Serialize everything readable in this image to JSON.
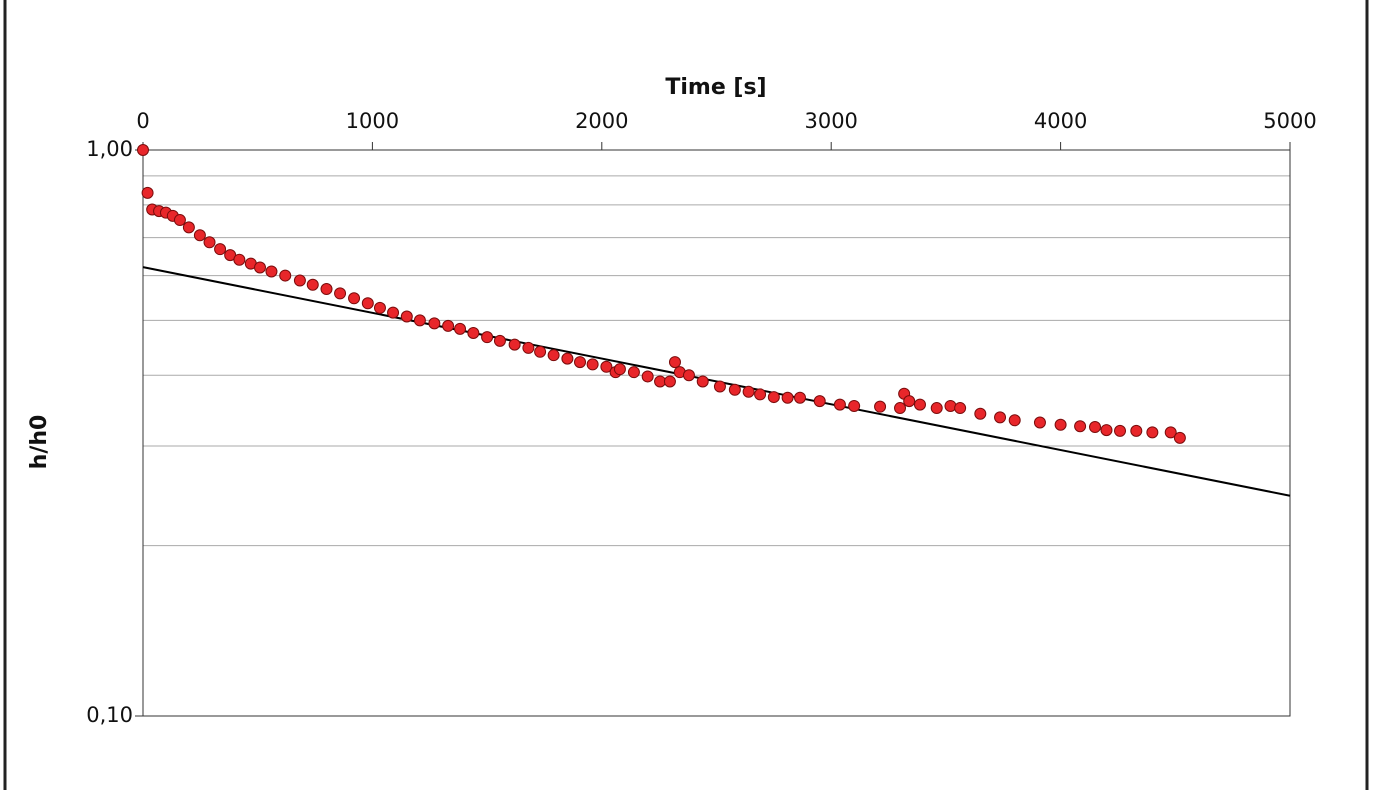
{
  "chart_data": {
    "type": "scatter",
    "xlabel": "Time [s]",
    "ylabel": "h/h0",
    "x_axis_position": "top",
    "xlim": [
      0,
      5000
    ],
    "xticks": [
      0,
      1000,
      2000,
      3000,
      4000,
      5000
    ],
    "ylim": [
      0.1,
      1.0
    ],
    "y_log_scale": true,
    "yticks": [
      {
        "value": 1.0,
        "label": "1,00"
      },
      {
        "value": 0.1,
        "label": "0,10"
      }
    ],
    "y_minor_grid": [
      0.2,
      0.3,
      0.4,
      0.5,
      0.6,
      0.7,
      0.8,
      0.9
    ],
    "points": {
      "color": "#e8262a",
      "x": [
        0,
        20,
        40,
        70,
        100,
        130,
        161,
        200,
        248,
        290,
        336,
        380,
        420,
        470,
        510,
        560,
        620,
        684,
        740,
        800,
        859,
        920,
        980,
        1033,
        1090,
        1150,
        1207,
        1270,
        1330,
        1382,
        1440,
        1500,
        1556,
        1620,
        1680,
        1731,
        1790,
        1850,
        1905,
        1960,
        2020,
        2060,
        2079,
        2140,
        2200,
        2254,
        2297,
        2319,
        2340,
        2380,
        2440,
        2515,
        2580,
        2640,
        2690,
        2750,
        2810,
        2864,
        2950,
        3038,
        3100,
        3213,
        3300,
        3318,
        3340,
        3387,
        3460,
        3520,
        3562,
        3650,
        3736,
        3800,
        3910,
        4000,
        4085,
        4150,
        4200,
        4259,
        4330,
        4400,
        4480,
        4520
      ],
      "values": [
        1.0,
        0.84,
        0.785,
        0.78,
        0.775,
        0.765,
        0.752,
        0.73,
        0.707,
        0.687,
        0.668,
        0.652,
        0.64,
        0.63,
        0.62,
        0.61,
        0.6,
        0.588,
        0.578,
        0.568,
        0.558,
        0.547,
        0.536,
        0.526,
        0.516,
        0.508,
        0.5,
        0.494,
        0.489,
        0.483,
        0.475,
        0.467,
        0.46,
        0.453,
        0.447,
        0.44,
        0.434,
        0.428,
        0.422,
        0.418,
        0.414,
        0.405,
        0.41,
        0.405,
        0.398,
        0.39,
        0.39,
        0.422,
        0.405,
        0.4,
        0.39,
        0.382,
        0.377,
        0.374,
        0.37,
        0.366,
        0.365,
        0.365,
        0.36,
        0.355,
        0.353,
        0.352,
        0.35,
        0.371,
        0.36,
        0.355,
        0.35,
        0.353,
        0.35,
        0.342,
        0.337,
        0.333,
        0.33,
        0.327,
        0.325,
        0.324,
        0.32,
        0.319,
        0.319,
        0.317,
        0.317,
        0.31
      ]
    },
    "fit": {
      "color": "#000000",
      "x": [
        0,
        5000
      ],
      "values": [
        0.621,
        0.245
      ]
    }
  }
}
